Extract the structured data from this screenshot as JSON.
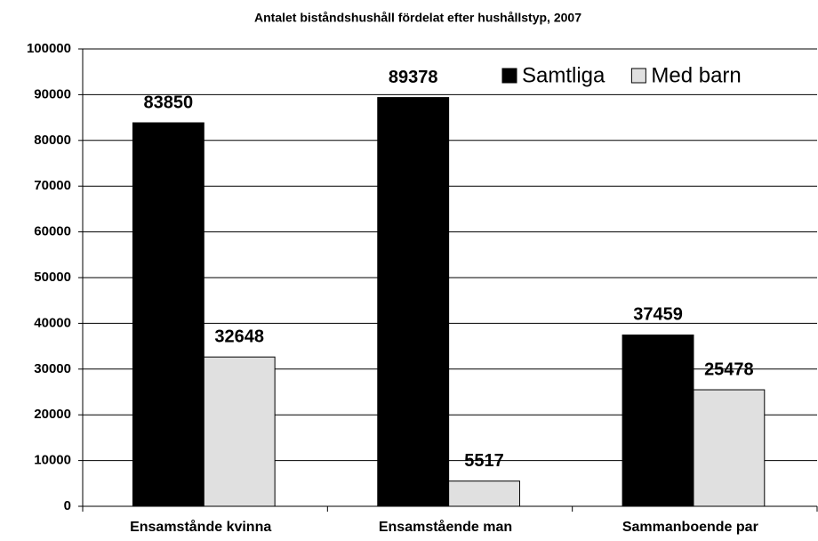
{
  "chart_data": {
    "type": "bar",
    "title": "Antalet biståndshushåll fördelat efter hushållstyp, 2007",
    "categories": [
      "Ensamstånde kvinna",
      "Ensamstående man",
      "Sammanboende par"
    ],
    "series": [
      {
        "name": "Samtliga",
        "color": "#000000",
        "values": [
          83850,
          89378,
          37459
        ]
      },
      {
        "name": "Med barn",
        "color": "#e0e0e0",
        "values": [
          32648,
          5517,
          25478
        ]
      }
    ],
    "ylim": [
      0,
      100000
    ],
    "yticks": [
      0,
      10000,
      20000,
      30000,
      40000,
      50000,
      60000,
      70000,
      80000,
      90000,
      100000
    ],
    "grid": true,
    "legend": "upper right"
  }
}
